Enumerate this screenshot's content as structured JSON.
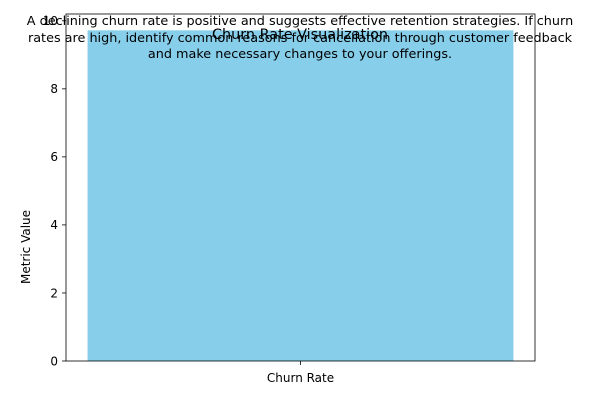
{
  "chart_data": {
    "type": "bar",
    "title": "Churn Rate Visualization",
    "xlabel": "",
    "ylabel": "Metric Value",
    "categories": [
      "Churn Rate"
    ],
    "values": [
      9.72
    ],
    "ylim": [
      0,
      10.2
    ],
    "yticks": [
      "0",
      "2",
      "4",
      "6",
      "8",
      "10"
    ],
    "bar_color": "#87ceeb",
    "grid": false,
    "legend": "none",
    "annotation": [
      "A declining churn rate is positive and suggests effective retention strategies. If churn",
      "rates are high, identify common reasons for cancellation through customer feedback",
      "and make necessary changes to your offerings."
    ]
  }
}
